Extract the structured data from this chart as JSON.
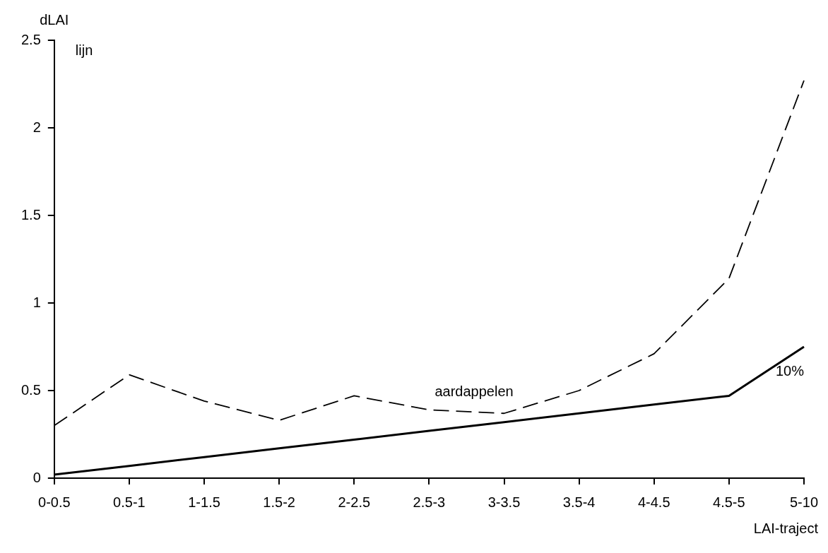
{
  "chart_data": {
    "type": "line",
    "ylabel": "dLAI",
    "xlabel": "LAI-traject",
    "annotations": [
      "lijn"
    ],
    "categories": [
      "0-0.5",
      "0.5-1",
      "1-1.5",
      "1.5-2",
      "2-2.5",
      "2.5-3",
      "3-3.5",
      "3.5-4",
      "4-4.5",
      "4.5-5",
      "5-10"
    ],
    "series": [
      {
        "name": "aardappelen",
        "color": "#000000",
        "line_style": "dashed",
        "values": [
          0.3,
          0.59,
          0.44,
          0.33,
          0.47,
          0.39,
          0.37,
          0.5,
          0.71,
          1.14,
          2.27
        ]
      },
      {
        "name": "10%",
        "color": "#000000",
        "line_style": "solid",
        "values": [
          0.02,
          0.07,
          0.12,
          0.17,
          0.22,
          0.27,
          0.32,
          0.37,
          0.42,
          0.47,
          0.75
        ]
      }
    ],
    "ylim": [
      0,
      2.5
    ],
    "yticks": [
      0,
      0.5,
      1,
      1.5,
      2,
      2.5
    ],
    "grid": false,
    "legend": false,
    "marker": "none"
  }
}
